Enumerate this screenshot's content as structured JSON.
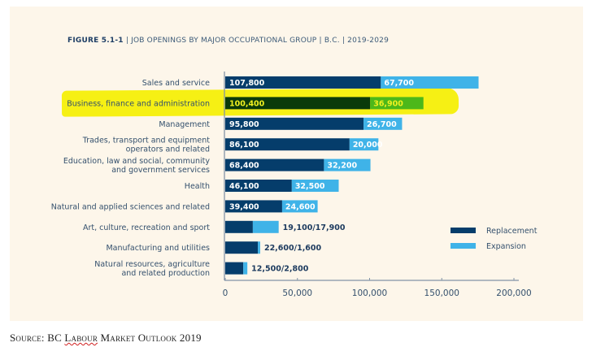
{
  "figure": {
    "number": "FIGURE 5.1-1",
    "title": "JOB OPENINGS BY MAJOR OCCUPATIONAL GROUP",
    "region": "B.C.",
    "period": "2019-2029",
    "separator": "|"
  },
  "source": {
    "prefix": "Source: BC ",
    "underlined": "Labour",
    "suffix": " Market Outlook 2019"
  },
  "colors": {
    "replacement": "#053d6b",
    "expansion": "#3fb3e8",
    "highlight": "#f6f014",
    "highlight_replacement": "#0a3a0a",
    "highlight_expansion": "#4cb81a",
    "highlight_label": "#f0f020",
    "axis": "#8394a6",
    "label_text": "#34506d",
    "value_text_dark": "#1c3a5e"
  },
  "chart_data": {
    "type": "bar",
    "orientation": "horizontal",
    "stacked": true,
    "title": "JOB OPENINGS BY MAJOR OCCUPATIONAL GROUP | B.C. | 2019-2029",
    "xlabel": "",
    "ylabel": "",
    "xlim": [
      0,
      200000
    ],
    "xticks": [
      0,
      50000,
      100000,
      150000,
      200000
    ],
    "xtick_labels": [
      "0",
      "50,000",
      "100,000",
      "150,000",
      "200,000"
    ],
    "grid": false,
    "legend_position": "bottom-right",
    "categories": [
      [
        "Sales and service"
      ],
      [
        "Business, finance and administration"
      ],
      [
        "Management"
      ],
      [
        "Trades, transport and equipment",
        "operators and related"
      ],
      [
        "Education, law and social, community",
        "and government services"
      ],
      [
        "Health"
      ],
      [
        "Natural and applied sciences and related"
      ],
      [
        "Art, culture, recreation and sport"
      ],
      [
        "Manufacturing and utilities"
      ],
      [
        "Natural resources, agriculture",
        "and related production"
      ]
    ],
    "series": [
      {
        "name": "Replacement",
        "values": [
          107800,
          100400,
          95800,
          86100,
          68400,
          46100,
          39400,
          19100,
          22600,
          12500
        ],
        "labels": [
          "107,800",
          "100,400",
          "95,800",
          "86,100",
          "68,400",
          "46,100",
          "39,400",
          "",
          "",
          ""
        ]
      },
      {
        "name": "Expansion",
        "values": [
          67700,
          36900,
          26700,
          20000,
          32200,
          32500,
          24600,
          17900,
          1600,
          2800
        ],
        "labels": [
          "67,700",
          "36,900",
          "26,700",
          "20,000",
          "32,200",
          "32,500",
          "24,600",
          "",
          "",
          ""
        ]
      }
    ],
    "outside_labels": [
      "",
      "",
      "",
      "",
      "",
      "",
      "",
      "19,100/17,900",
      "22,600/1,600",
      "12,500/2,800"
    ],
    "highlighted_category_index": 1,
    "legend": [
      "Replacement",
      "Expansion"
    ]
  }
}
